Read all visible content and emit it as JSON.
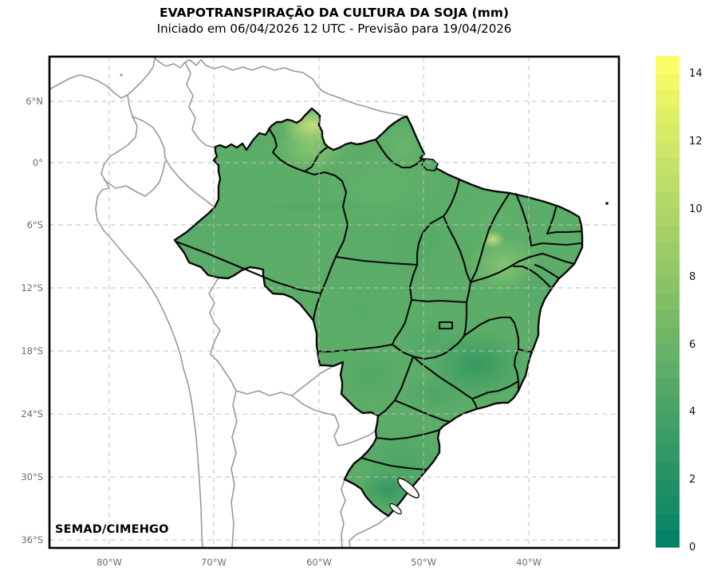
{
  "header": {
    "title": "EVAPOTRANSPIRAÇÃO DA CULTURA DA SOJA (mm)",
    "subtitle": "Iniciado em 06/04/2026 12 UTC - Previsão para 19/04/2026"
  },
  "credit": "SEMAD/CIMEHGO",
  "axes": {
    "lat_labels": [
      "6°N",
      "0°",
      "6°S",
      "12°S",
      "18°S",
      "24°S",
      "30°S",
      "36°S"
    ],
    "lon_labels": [
      "80°W",
      "70°W",
      "60°W",
      "50°W",
      "40°W"
    ]
  },
  "colorbar": {
    "vmin": 0,
    "vmax": 14.5,
    "step": 0.5,
    "tick_labels": [
      "0",
      "2",
      "4",
      "6",
      "8",
      "10",
      "12",
      "14"
    ],
    "stops": [
      {
        "t": 0,
        "color": "#008066"
      },
      {
        "t": 0.5,
        "color": "#80bf66"
      },
      {
        "t": 1,
        "color": "#ffff66"
      }
    ]
  },
  "map_colors": {
    "base_green": "#5cad68",
    "dark_southeast": "#2f9560",
    "light_north": "#c9e27c",
    "state_border": "#0a0a0a",
    "country_border": "#999999",
    "grid": "#bdbdbd"
  },
  "chart_data": {
    "type": "heatmap",
    "title": "EVAPOTRANSPIRAÇÃO DA CULTURA DA SOJA (mm)",
    "subtitle": "Iniciado em 06/04/2026 12 UTC - Previsão para 19/04/2026",
    "variable": "evapotranspiração acumulada da cultura da soja",
    "unit": "mm",
    "geography": "Brasil com divisões estaduais coloridas; países vizinhos da América do Sul apenas em contorno cinza",
    "extent": {
      "lon": [
        "86°W",
        "31°W"
      ],
      "lat": [
        "10°N",
        "37°S"
      ]
    },
    "xticks": [
      "80°W",
      "70°W",
      "60°W",
      "50°W",
      "40°W"
    ],
    "yticks": [
      "6°N",
      "0°",
      "6°S",
      "12°S",
      "18°S",
      "24°S",
      "30°S",
      "36°S"
    ],
    "grid": "dashed gray",
    "colorbar": {
      "min": 0,
      "max": 14.5,
      "ticks": [
        0,
        2,
        4,
        6,
        8,
        10,
        12,
        14
      ],
      "colormap": "teal-green to yellow (summer), discrete steps of 0.5"
    },
    "approx_regional_values_mm": [
      {
        "region": "Roraima (extremo norte)",
        "value": 10
      },
      {
        "region": "Amazônia central",
        "value": 5.5
      },
      {
        "region": "Amapá / norte do Pará",
        "value": 6
      },
      {
        "region": "Interior da Bahia",
        "value": 7.5
      },
      {
        "region": "Litoral do Nordeste",
        "value": 5
      },
      {
        "region": "Minas Gerais",
        "value": 3.5
      },
      {
        "region": "Centro-Oeste (MT/GO/MS)",
        "value": 5
      },
      {
        "region": "São Paulo",
        "value": 4.5
      },
      {
        "region": "Sul (PR/SC/RS)",
        "value": 4.5
      }
    ],
    "credit": "SEMAD/CIMEHGO"
  }
}
